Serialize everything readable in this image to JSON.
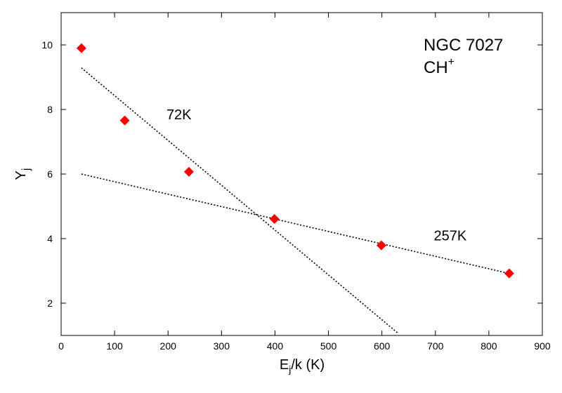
{
  "chart_data": {
    "type": "scatter",
    "xlabel": {
      "main": "E",
      "sub": "j",
      "rest": "/k (K)"
    },
    "ylabel": {
      "main": "Y",
      "sub": "j"
    },
    "xlim": [
      0,
      900
    ],
    "ylim": [
      1,
      11
    ],
    "xticks": [
      0,
      100,
      200,
      300,
      400,
      500,
      600,
      700,
      800,
      900
    ],
    "yticks": [
      2,
      4,
      6,
      8,
      10
    ],
    "grid": false,
    "title_lines": [
      {
        "text": "NGC 7027"
      },
      {
        "text": "CH",
        "sup": "+"
      }
    ],
    "points": [
      {
        "x": 38,
        "y": 9.9
      },
      {
        "x": 119,
        "y": 7.66
      },
      {
        "x": 239,
        "y": 6.07
      },
      {
        "x": 399,
        "y": 4.61
      },
      {
        "x": 599,
        "y": 3.79
      },
      {
        "x": 838,
        "y": 2.92
      }
    ],
    "marker_color": "#ff0000",
    "fit_lines": [
      {
        "label": "72K",
        "x1": 38,
        "y1": 9.29,
        "x2": 630,
        "y2": 1.07
      },
      {
        "label": "257K",
        "x1": 38,
        "y1": 6.0,
        "x2": 838,
        "y2": 2.92
      }
    ],
    "annotations": [
      {
        "text": "72K",
        "x": 197,
        "y": 7.7
      },
      {
        "text": "257K",
        "x": 697,
        "y": 3.95
      }
    ]
  }
}
